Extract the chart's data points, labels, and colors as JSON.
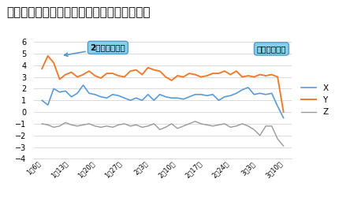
{
  "title": "地震直前宮城県気仙沼に現れたプレスリップ",
  "xlabel_ticks": [
    "1月6日",
    "1月13日",
    "1月20日",
    "1月27日",
    "2月3日",
    "2月10日",
    "2月17日",
    "2月24日",
    "3月3日",
    "3月10日"
  ],
  "ylim": [
    -4,
    6
  ],
  "yticks": [
    -4,
    -3,
    -2,
    -1,
    0,
    1,
    2,
    3,
    4,
    5,
    6
  ],
  "annotation1": "2か月前の前兆",
  "annotation2": "プレスリップ",
  "legend_labels": [
    "X",
    "Y",
    "Z"
  ],
  "color_x": "#5B9BD5",
  "color_y": "#ED7D31",
  "color_z": "#999999",
  "title_fontsize": 11,
  "background_color": "#ffffff",
  "ann_facecolor": "#87CEEB",
  "ann_edgecolor": "#5599CC",
  "X": [
    1.0,
    0.6,
    2.0,
    1.7,
    1.8,
    1.3,
    1.6,
    2.3,
    1.6,
    1.5,
    1.3,
    1.2,
    1.5,
    1.4,
    1.2,
    1.0,
    1.2,
    1.0,
    1.5,
    1.0,
    1.5,
    1.3,
    1.2,
    1.2,
    1.1,
    1.3,
    1.5,
    1.5,
    1.4,
    1.5,
    1.0,
    1.3,
    1.4,
    1.6,
    1.9,
    2.1,
    1.5,
    1.6,
    1.5,
    1.6,
    0.5,
    -0.5
  ],
  "Y": [
    3.7,
    4.8,
    4.2,
    2.8,
    3.2,
    3.4,
    3.0,
    3.2,
    3.5,
    3.1,
    2.9,
    3.3,
    3.3,
    3.1,
    3.0,
    3.5,
    3.6,
    3.2,
    3.8,
    3.6,
    3.5,
    3.0,
    2.7,
    3.1,
    3.0,
    3.3,
    3.2,
    3.0,
    3.1,
    3.3,
    3.3,
    3.5,
    3.2,
    3.5,
    3.0,
    3.1,
    3.0,
    3.2,
    3.1,
    3.2,
    3.0,
    0.0
  ],
  "Z": [
    -1.0,
    -1.1,
    -1.3,
    -1.2,
    -0.9,
    -1.1,
    -1.2,
    -1.1,
    -1.0,
    -1.2,
    -1.3,
    -1.2,
    -1.3,
    -1.1,
    -1.0,
    -1.2,
    -1.1,
    -1.3,
    -1.2,
    -1.0,
    -1.5,
    -1.3,
    -1.0,
    -1.4,
    -1.2,
    -1.0,
    -0.8,
    -1.0,
    -1.1,
    -1.2,
    -1.1,
    -1.0,
    -1.3,
    -1.2,
    -1.0,
    -1.2,
    -1.5,
    -2.0,
    -1.2,
    -1.2,
    -2.3,
    -2.9
  ]
}
